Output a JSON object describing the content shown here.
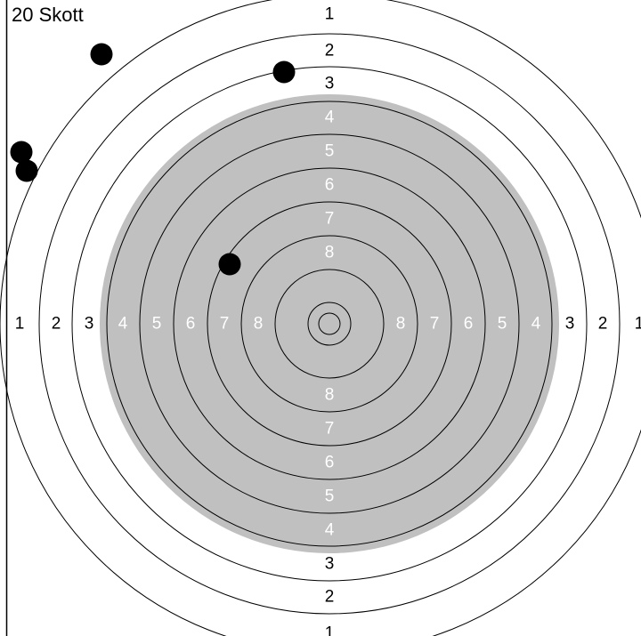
{
  "header": {
    "shot_count_label": "20 Skott"
  },
  "target": {
    "outer_ring_numbers": [
      "1",
      "2",
      "3"
    ],
    "inner_ring_numbers": [
      "4",
      "5",
      "6",
      "7",
      "8"
    ],
    "colors": {
      "background": "#ffffff",
      "scoring_zone": "#c0c0c0",
      "ring_line": "#000000",
      "outer_number": "#000000",
      "inner_number": "#ffffff",
      "shot": "#000000"
    }
  },
  "shots": [
    {
      "id": "shot-1"
    },
    {
      "id": "shot-2"
    },
    {
      "id": "shot-3"
    },
    {
      "id": "shot-4"
    },
    {
      "id": "shot-5"
    }
  ]
}
